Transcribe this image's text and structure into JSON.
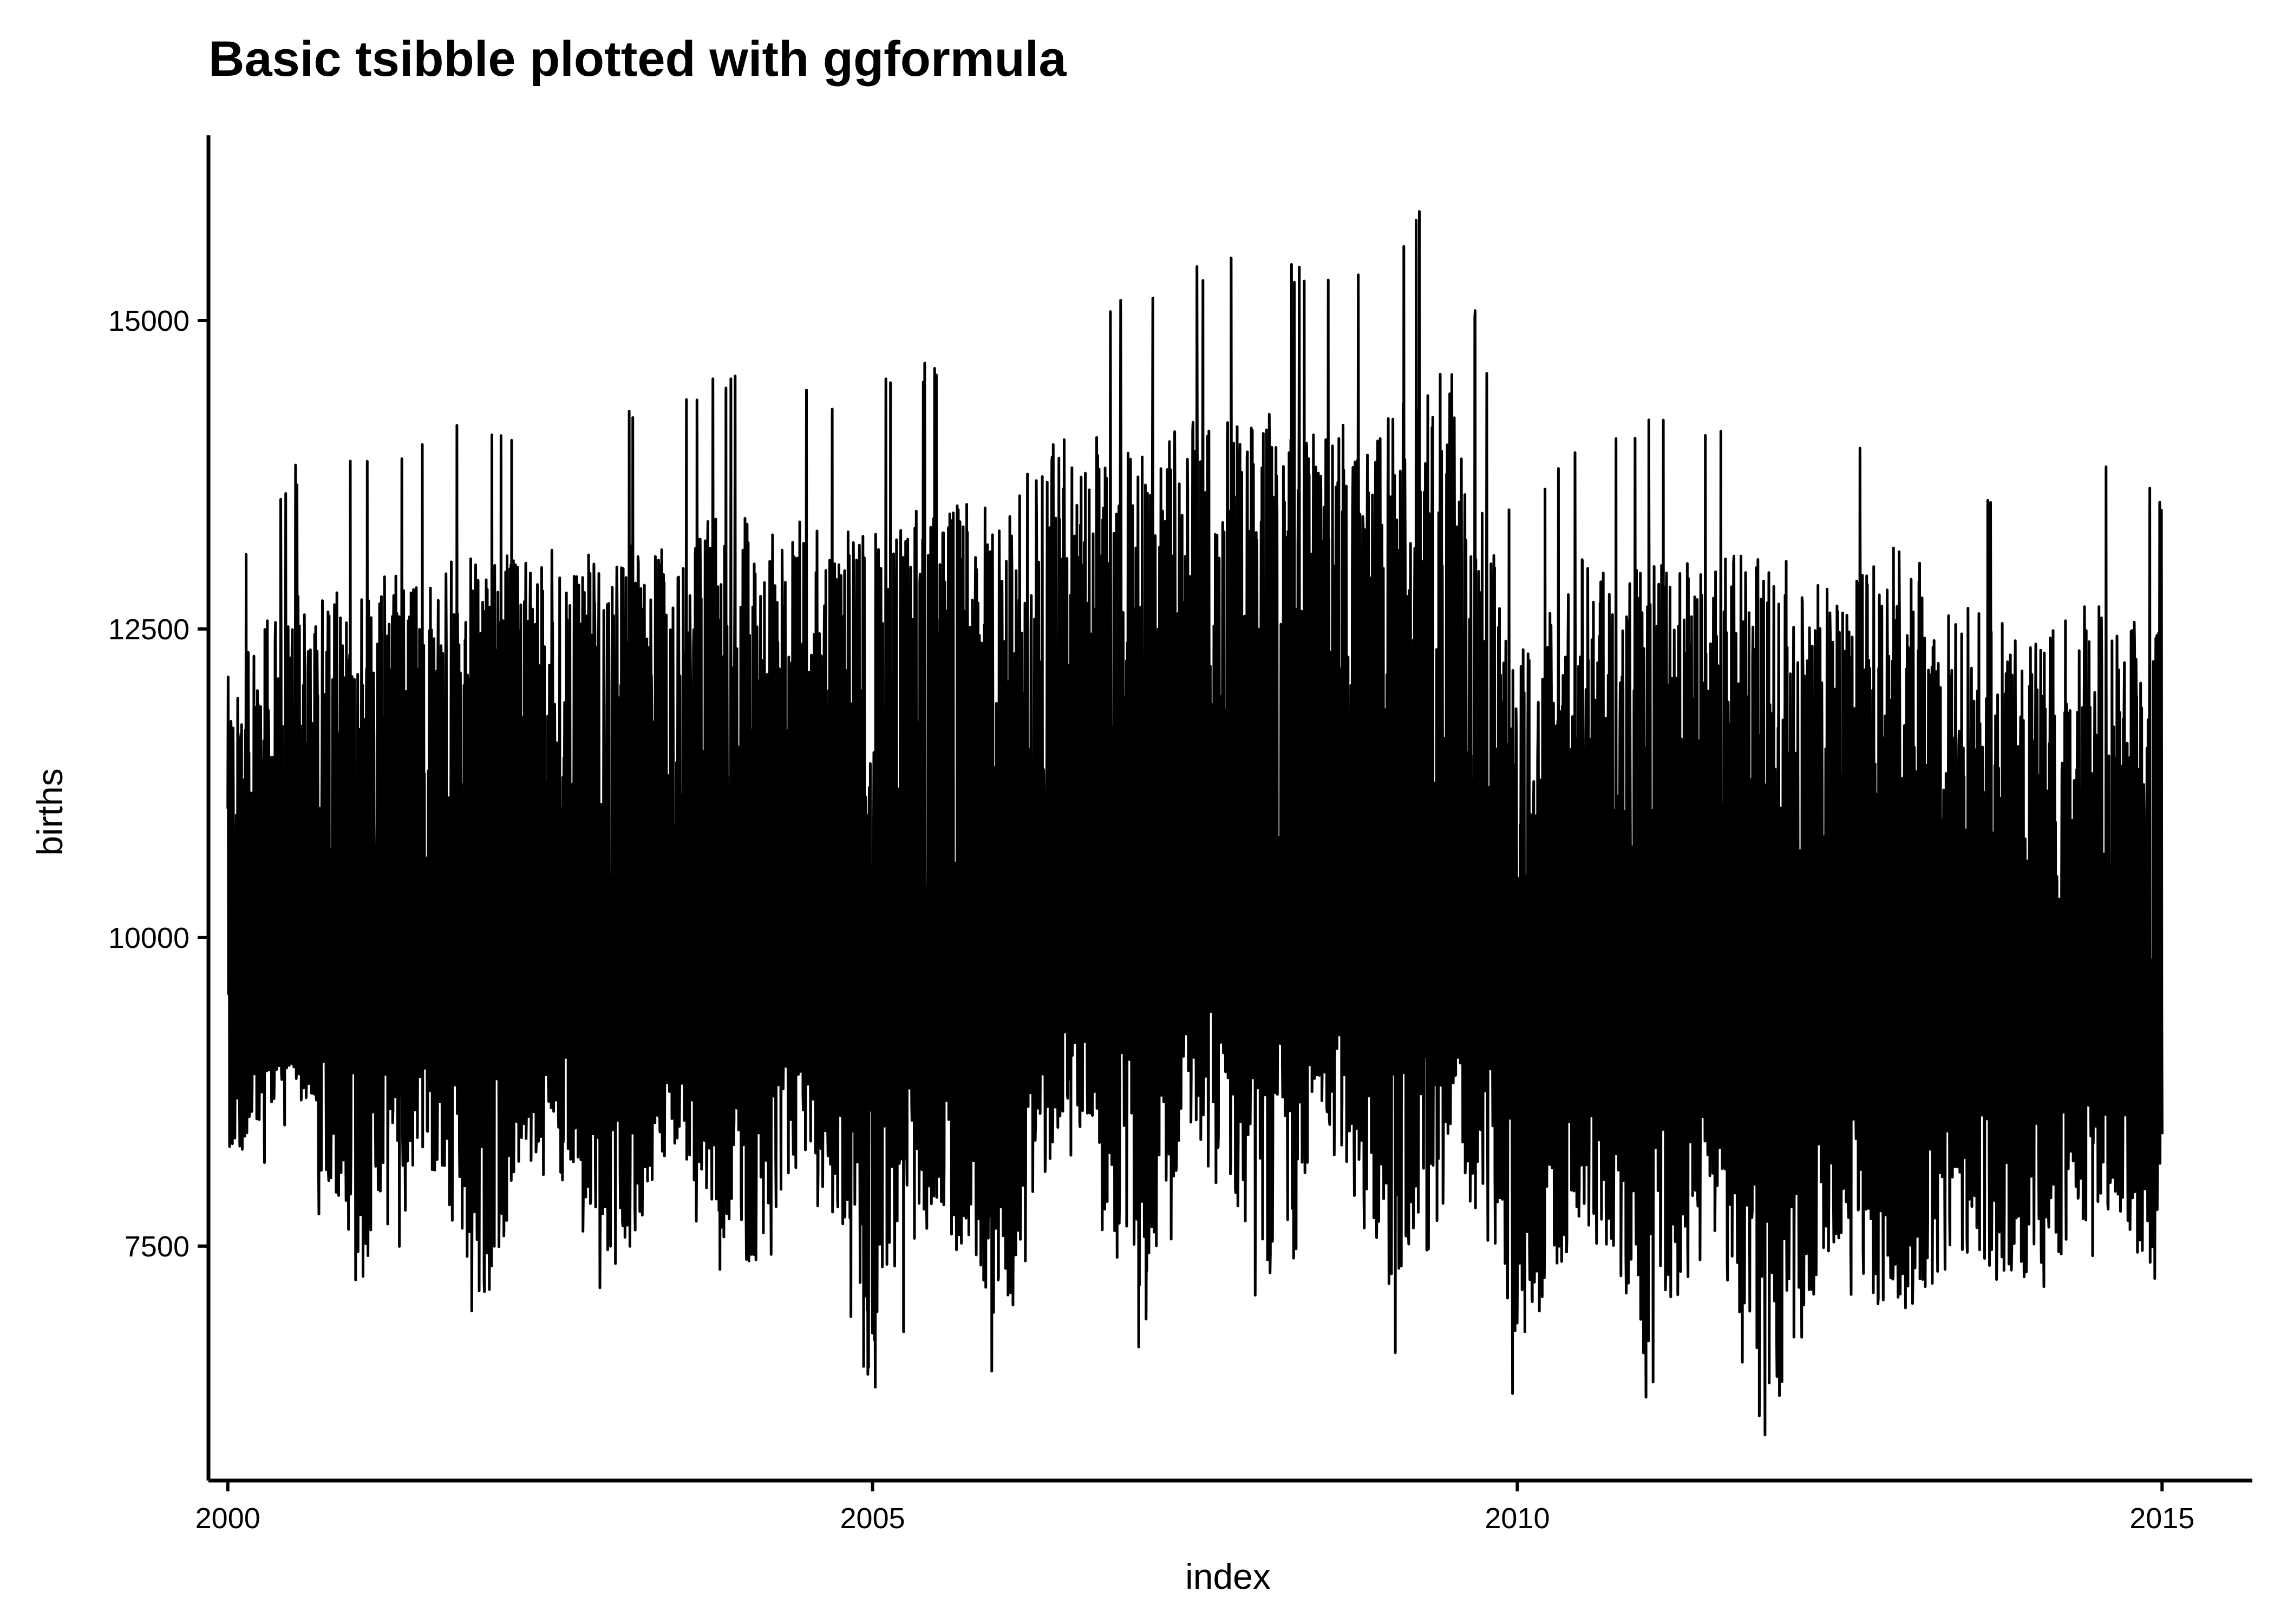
{
  "chart_data": {
    "type": "line",
    "title": "Basic tsibble plotted with ggformula",
    "xlabel": "index",
    "ylabel": "births",
    "xlim": [
      1999.85,
      2015.7
    ],
    "ylim": [
      5600,
      16500
    ],
    "x_ticks": [
      2000,
      2005,
      2010,
      2015
    ],
    "x_tick_labels": [
      "2000",
      "2005",
      "2010",
      "2015"
    ],
    "y_ticks": [
      7500,
      10000,
      12500,
      15000
    ],
    "y_tick_labels": [
      "7500",
      "10000",
      "12500",
      "15000"
    ],
    "grid": false,
    "legend": "none",
    "series_color": "#000000",
    "series": [
      {
        "x": [
          2000.0,
          2000.5,
          2001.0,
          2001.5,
          2002.0,
          2002.5,
          2003.0,
          2003.5,
          2004.0,
          2004.5,
          2005.0,
          2005.5,
          2006.0,
          2006.5,
          2007.0,
          2007.5,
          2008.0,
          2008.5,
          2009.0,
          2009.5,
          2010.0,
          2010.5,
          2011.0,
          2011.5,
          2012.0,
          2012.5,
          2013.0,
          2013.5,
          2014.0,
          2014.5,
          2015.0
        ],
        "high": [
          13000,
          13900,
          14000,
          14100,
          14250,
          14250,
          14300,
          14450,
          14700,
          14500,
          14550,
          14750,
          14700,
          15450,
          15200,
          15450,
          15600,
          15400,
          15650,
          16150,
          13300,
          14200,
          14200,
          14300,
          14400,
          13900,
          14650,
          13800,
          13500,
          13900,
          13650
        ],
        "weekday_low": [
          9000,
          9300,
          9100,
          9200,
          9000,
          9200,
          9100,
          9200,
          9100,
          9300,
          9000,
          9400,
          9300,
          9600,
          9500,
          9700,
          9600,
          9500,
          9400,
          9500,
          9000,
          9100,
          8800,
          8900,
          8700,
          8900,
          8600,
          8800,
          8700,
          8900,
          8900
        ],
        "weekend_high": [
          8900,
          9200,
          9000,
          9100,
          8900,
          9100,
          9000,
          9100,
          9000,
          9200,
          8900,
          9300,
          9200,
          9500,
          9400,
          9600,
          9500,
          9400,
          9300,
          9400,
          8900,
          9000,
          8700,
          8800,
          8600,
          8800,
          8500,
          8700,
          8600,
          8800,
          8800
        ],
        "low": [
          7700,
          8500,
          6700,
          7900,
          6600,
          8200,
          6800,
          7900,
          6750,
          7900,
          6250,
          7300,
          6200,
          8200,
          6400,
          8000,
          6600,
          8100,
          6450,
          7900,
          6150,
          7300,
          6150,
          7100,
          5750,
          7100,
          6300,
          7000,
          6600,
          7400,
          6750
        ]
      }
    ]
  }
}
